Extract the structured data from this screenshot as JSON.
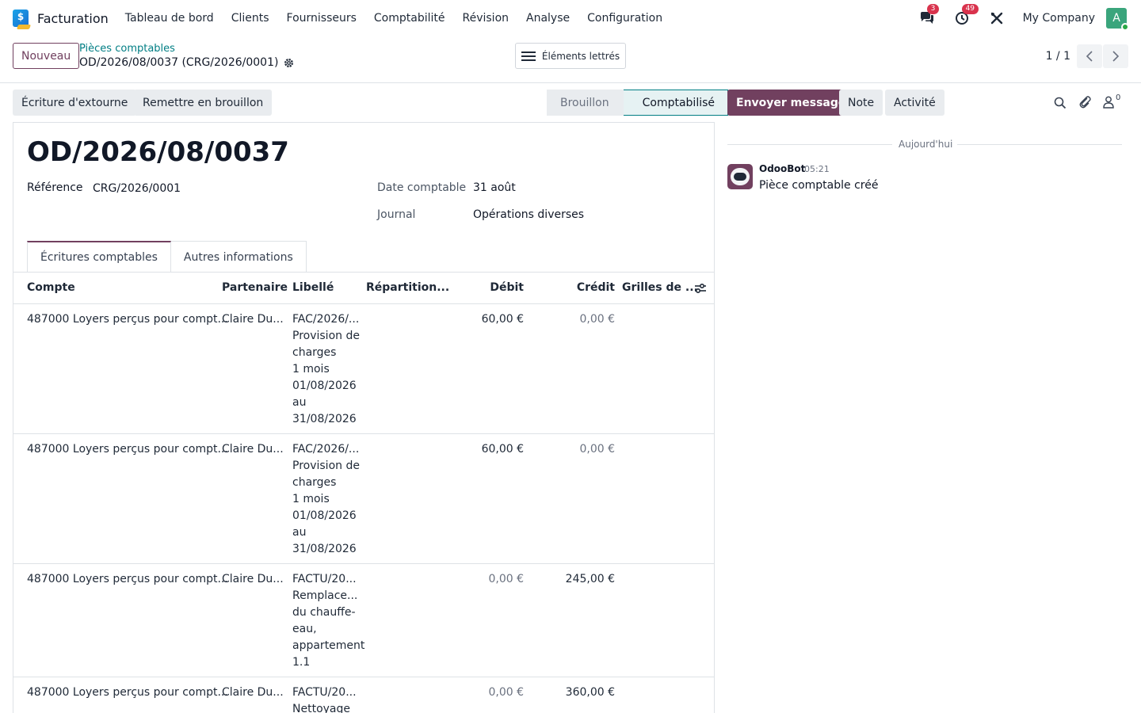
{
  "navbar": {
    "app_name": "Facturation",
    "menu": [
      "Tableau de bord",
      "Clients",
      "Fournisseurs",
      "Comptabilité",
      "Révision",
      "Analyse",
      "Configuration"
    ],
    "messages_badge": "3",
    "activities_badge": "49",
    "company": "My Company",
    "avatar_letter": "A",
    "logo_glyph": "$"
  },
  "control": {
    "new_label": "Nouveau",
    "breadcrumb_parent": "Pièces comptables",
    "breadcrumb_current": "OD/2026/08/0037 (CRG/2026/0001)",
    "reconciled_label": "Éléments lettrés",
    "pager": "1 / 1"
  },
  "actions": {
    "reverse_label": "Écriture d'extourne",
    "reset_draft_label": "Remettre en brouillon"
  },
  "status": {
    "draft": "Brouillon",
    "posted": "Comptabilisé"
  },
  "form": {
    "title": "OD/2026/08/0037",
    "reference_label": "Référence",
    "reference_value": "CRG/2026/0001",
    "date_label": "Date comptable",
    "date_value": "31 août",
    "journal_label": "Journal",
    "journal_value": "Opérations diverses",
    "tabs": [
      "Écritures comptables",
      "Autres informations"
    ]
  },
  "table": {
    "headers": {
      "account": "Compte",
      "partner": "Partenaire",
      "label": "Libellé",
      "distribution": "Répartition...",
      "debit": "Débit",
      "credit": "Crédit",
      "tax_grids": "Grilles de ..."
    },
    "rows": [
      {
        "account": "487000 Loyers perçus pour compt...",
        "partner": "Claire Du...",
        "label": [
          "FAC/2026/...",
          "Provision de",
          "charges",
          "1 mois",
          "01/08/2026",
          "au",
          "31/08/2026"
        ],
        "debit": "60,00 €",
        "credit": "0,00 €"
      },
      {
        "account": "487000 Loyers perçus pour compt...",
        "partner": "Claire Du...",
        "label": [
          "FAC/2026/...",
          "Provision de",
          "charges",
          "1 mois",
          "01/08/2026",
          "au",
          "31/08/2026"
        ],
        "debit": "60,00 €",
        "credit": "0,00 €"
      },
      {
        "account": "487000 Loyers perçus pour compt...",
        "partner": "Claire Du...",
        "label": [
          "FACTU/20...",
          "Remplace...",
          "du chauffe-",
          "eau,",
          "appartement",
          "1.1"
        ],
        "debit": "0,00 €",
        "credit": "245,00 €"
      },
      {
        "account": "487000 Loyers perçus pour compt...",
        "partner": "Claire Du...",
        "label": [
          "FACTU/20...",
          "Nettoyage"
        ],
        "debit": "0,00 €",
        "credit": "360,00 €"
      }
    ]
  },
  "chatter": {
    "send_label": "Envoyer message",
    "note_label": "Note",
    "activity_label": "Activité",
    "followers_count": "0",
    "today_label": "Aujourd'hui",
    "author": "OdooBot",
    "time": "05:21",
    "body": "Pièce comptable créé"
  },
  "colors": {
    "primary": "#71405f",
    "teal": "#017e84",
    "badge": "#d9334d",
    "avatar": "#3aa57c"
  }
}
